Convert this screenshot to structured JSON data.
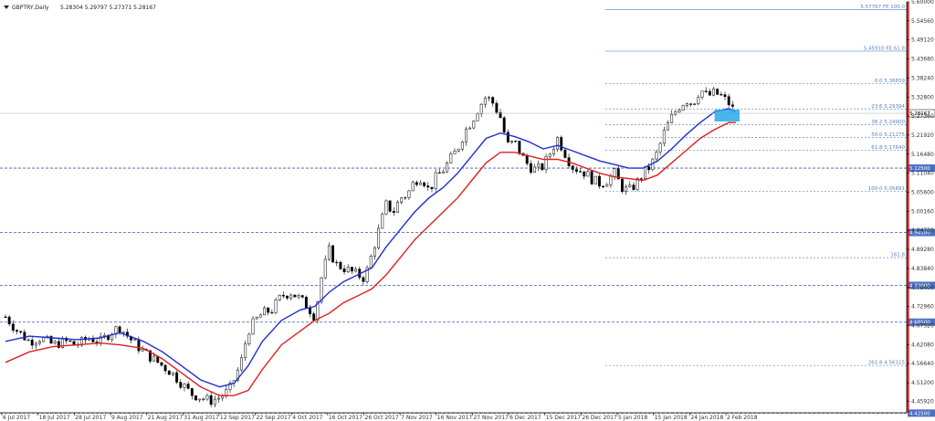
{
  "header": {
    "symbol": "GBPTRY,Daily",
    "ohlc": "5.28304 5.29797 5.27371 5.28167"
  },
  "colors": {
    "ema_fast": "#1f2fd6",
    "ema_slow": "#e02020",
    "candle": "#000000",
    "level_line": "#3a5aa8",
    "level_tag_bg": "#4a6fc2",
    "fib_line": "#7aa0d8",
    "axis_red": "#e01010",
    "current_box": "#29a9e8"
  },
  "chart_data": {
    "type": "candlestick",
    "ylim": [
      4.426,
      5.6
    ],
    "y_ticks": [
      "5.60000",
      "5.54560",
      "5.49120",
      "5.43680",
      "5.38240",
      "5.32800",
      "5.27360",
      "5.21920",
      "5.16480",
      "5.11040",
      "5.05600",
      "5.00160",
      "4.94720",
      "4.89280",
      "4.83840",
      "4.78400",
      "4.72960",
      "4.67520",
      "4.62080",
      "4.56640",
      "4.51200",
      "4.45920"
    ],
    "x_ticks": [
      "6 Jul 2017",
      "18 Jul 2017",
      "28 Jul 2017",
      "9 Aug 2017",
      "21 Aug 2017",
      "31 Aug 2017",
      "12 Sep 2017",
      "22 Sep 2017",
      "4 Oct 2017",
      "16 Oct 2017",
      "26 Oct 2017",
      "7 Nov 2017",
      "16 Nov 2017",
      "27 Nov 2017",
      "6 Dec 2017",
      "15 Dec 2017",
      "26 Dec 2017",
      "5 Jan 2018",
      "15 Jan 2018",
      "24 Jan 2018",
      "2 Feb 2018"
    ],
    "current_price": "5.28167",
    "horizontal_levels": [
      {
        "value": 5.125,
        "label": "5.12500"
      },
      {
        "value": 4.941,
        "label": "4.94100"
      },
      {
        "value": 4.79,
        "label": "4.79000"
      },
      {
        "value": 4.685,
        "label": "4.68500"
      },
      {
        "value": 4.425,
        "label": "4.42500"
      }
    ],
    "fib_levels": [
      {
        "value": 5.5777,
        "label": "5.57767 FE 100.0"
      },
      {
        "value": 5.4591,
        "label": "5.45910 FE 61.8"
      },
      {
        "value": 5.3666,
        "label": "0.0 5.36659"
      },
      {
        "value": 5.2939,
        "label": "23.6 5.29394"
      },
      {
        "value": 5.249,
        "label": "38.2 5.24900"
      },
      {
        "value": 5.2128,
        "label": "50.0 5.21275"
      },
      {
        "value": 5.1764,
        "label": "61.8 5.17640"
      },
      {
        "value": 5.0589,
        "label": "100.0 5.05891"
      },
      {
        "value": 4.869,
        "label": "161.8"
      },
      {
        "value": 4.5611,
        "label": "261.8 4.56115"
      }
    ],
    "close_path": [
      [
        0,
        4.7
      ],
      [
        5,
        4.66
      ],
      [
        10,
        4.63
      ],
      [
        15,
        4.64
      ],
      [
        20,
        4.62
      ],
      [
        25,
        4.63
      ],
      [
        30,
        4.62
      ],
      [
        35,
        4.64
      ],
      [
        40,
        4.63
      ],
      [
        45,
        4.66
      ],
      [
        48,
        4.67
      ],
      [
        52,
        4.64
      ],
      [
        58,
        4.6
      ],
      [
        62,
        4.58
      ],
      [
        66,
        4.56
      ],
      [
        70,
        4.54
      ],
      [
        74,
        4.51
      ],
      [
        78,
        4.48
      ],
      [
        82,
        4.47
      ],
      [
        86,
        4.46
      ],
      [
        90,
        4.47
      ],
      [
        94,
        4.49
      ],
      [
        96,
        4.52
      ],
      [
        99,
        4.57
      ],
      [
        102,
        4.66
      ],
      [
        105,
        4.69
      ],
      [
        108,
        4.71
      ],
      [
        112,
        4.72
      ],
      [
        116,
        4.76
      ],
      [
        120,
        4.77
      ],
      [
        124,
        4.75
      ],
      [
        127,
        4.73
      ],
      [
        130,
        4.7
      ],
      [
        133,
        4.82
      ],
      [
        136,
        4.89
      ],
      [
        139,
        4.85
      ],
      [
        142,
        4.84
      ],
      [
        145,
        4.83
      ],
      [
        148,
        4.82
      ],
      [
        151,
        4.81
      ],
      [
        154,
        4.88
      ],
      [
        157,
        4.95
      ],
      [
        160,
        5.02
      ],
      [
        163,
        5.0
      ],
      [
        166,
        5.04
      ],
      [
        169,
        5.05
      ],
      [
        172,
        5.09
      ],
      [
        175,
        5.1
      ],
      [
        178,
        5.06
      ],
      [
        181,
        5.1
      ],
      [
        184,
        5.12
      ],
      [
        187,
        5.15
      ],
      [
        190,
        5.18
      ],
      [
        193,
        5.23
      ],
      [
        196,
        5.26
      ],
      [
        199,
        5.3
      ],
      [
        202,
        5.33
      ],
      [
        205,
        5.31
      ],
      [
        208,
        5.27
      ],
      [
        211,
        5.19
      ],
      [
        214,
        5.2
      ],
      [
        217,
        5.16
      ],
      [
        220,
        5.13
      ],
      [
        223,
        5.12
      ],
      [
        226,
        5.13
      ],
      [
        229,
        5.17
      ],
      [
        232,
        5.21
      ],
      [
        235,
        5.17
      ],
      [
        238,
        5.13
      ],
      [
        241,
        5.12
      ],
      [
        244,
        5.11
      ],
      [
        247,
        5.09
      ],
      [
        250,
        5.08
      ],
      [
        253,
        5.09
      ],
      [
        256,
        5.11
      ],
      [
        259,
        5.07
      ],
      [
        262,
        5.06
      ],
      [
        265,
        5.08
      ],
      [
        268,
        5.11
      ],
      [
        271,
        5.13
      ],
      [
        274,
        5.17
      ],
      [
        277,
        5.23
      ],
      [
        280,
        5.27
      ],
      [
        283,
        5.3
      ],
      [
        286,
        5.32
      ],
      [
        289,
        5.31
      ],
      [
        292,
        5.35
      ],
      [
        295,
        5.33
      ],
      [
        298,
        5.34
      ],
      [
        301,
        5.33
      ],
      [
        304,
        5.31
      ],
      [
        307,
        5.28
      ]
    ],
    "ema_fast_path": [
      [
        0,
        4.63
      ],
      [
        10,
        4.645
      ],
      [
        20,
        4.64
      ],
      [
        30,
        4.635
      ],
      [
        40,
        4.64
      ],
      [
        48,
        4.655
      ],
      [
        58,
        4.63
      ],
      [
        66,
        4.6
      ],
      [
        74,
        4.56
      ],
      [
        82,
        4.52
      ],
      [
        90,
        4.5
      ],
      [
        96,
        4.51
      ],
      [
        102,
        4.56
      ],
      [
        108,
        4.63
      ],
      [
        116,
        4.69
      ],
      [
        124,
        4.72
      ],
      [
        130,
        4.73
      ],
      [
        136,
        4.77
      ],
      [
        142,
        4.8
      ],
      [
        148,
        4.82
      ],
      [
        154,
        4.84
      ],
      [
        160,
        4.9
      ],
      [
        166,
        4.95
      ],
      [
        172,
        5.0
      ],
      [
        178,
        5.04
      ],
      [
        184,
        5.07
      ],
      [
        190,
        5.11
      ],
      [
        196,
        5.16
      ],
      [
        202,
        5.21
      ],
      [
        208,
        5.225
      ],
      [
        214,
        5.215
      ],
      [
        220,
        5.2
      ],
      [
        226,
        5.18
      ],
      [
        232,
        5.19
      ],
      [
        238,
        5.175
      ],
      [
        244,
        5.16
      ],
      [
        250,
        5.145
      ],
      [
        256,
        5.135
      ],
      [
        262,
        5.125
      ],
      [
        268,
        5.125
      ],
      [
        274,
        5.145
      ],
      [
        280,
        5.18
      ],
      [
        286,
        5.22
      ],
      [
        292,
        5.255
      ],
      [
        298,
        5.285
      ],
      [
        304,
        5.295
      ],
      [
        307,
        5.285
      ]
    ],
    "ema_slow_path": [
      [
        0,
        4.57
      ],
      [
        10,
        4.6
      ],
      [
        20,
        4.615
      ],
      [
        30,
        4.62
      ],
      [
        40,
        4.625
      ],
      [
        48,
        4.62
      ],
      [
        58,
        4.61
      ],
      [
        66,
        4.58
      ],
      [
        74,
        4.54
      ],
      [
        82,
        4.5
      ],
      [
        90,
        4.475
      ],
      [
        96,
        4.475
      ],
      [
        102,
        4.49
      ],
      [
        108,
        4.55
      ],
      [
        116,
        4.62
      ],
      [
        124,
        4.66
      ],
      [
        130,
        4.69
      ],
      [
        136,
        4.71
      ],
      [
        142,
        4.74
      ],
      [
        148,
        4.76
      ],
      [
        154,
        4.78
      ],
      [
        160,
        4.82
      ],
      [
        166,
        4.87
      ],
      [
        172,
        4.92
      ],
      [
        178,
        4.96
      ],
      [
        184,
        5.0
      ],
      [
        190,
        5.04
      ],
      [
        196,
        5.09
      ],
      [
        202,
        5.14
      ],
      [
        208,
        5.17
      ],
      [
        214,
        5.17
      ],
      [
        220,
        5.16
      ],
      [
        226,
        5.15
      ],
      [
        232,
        5.15
      ],
      [
        238,
        5.14
      ],
      [
        244,
        5.125
      ],
      [
        250,
        5.11
      ],
      [
        256,
        5.1
      ],
      [
        262,
        5.095
      ],
      [
        268,
        5.09
      ],
      [
        274,
        5.105
      ],
      [
        280,
        5.14
      ],
      [
        286,
        5.175
      ],
      [
        292,
        5.21
      ],
      [
        298,
        5.235
      ],
      [
        304,
        5.255
      ],
      [
        307,
        5.255
      ]
    ]
  }
}
